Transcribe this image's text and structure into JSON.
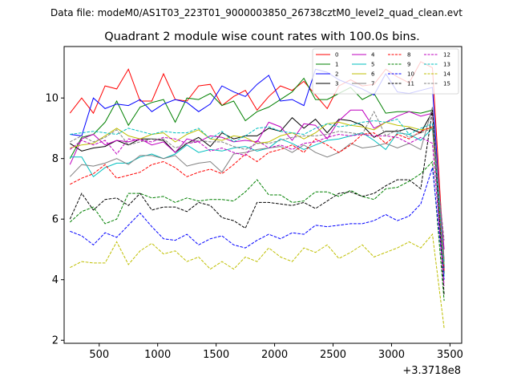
{
  "page": {
    "datafile": "Data file: modeM0/AS1T03_223T01_9000003850_26738cztM0_level2_quad_clean.evt"
  },
  "chart_data": {
    "type": "line",
    "title": "Quadrant 2 module wise count rates with 100.0s bins.",
    "xlabel": "",
    "ylabel": "",
    "x_offset_label": "+3.3718e8",
    "xlim": [
      200,
      3600
    ],
    "ylim": [
      1.9,
      11.7
    ],
    "xticks": [
      500,
      1000,
      1500,
      2000,
      2500,
      3000,
      3500
    ],
    "yticks": [
      2,
      4,
      6,
      8,
      10
    ],
    "legend_position": "top-right",
    "x": [
      250,
      350,
      450,
      550,
      650,
      750,
      850,
      950,
      1050,
      1150,
      1250,
      1350,
      1450,
      1550,
      1650,
      1750,
      1850,
      1950,
      2050,
      2150,
      2250,
      2350,
      2450,
      2550,
      2650,
      2750,
      2850,
      2950,
      3050,
      3150,
      3250,
      3350,
      3450
    ],
    "series": [
      {
        "name": "0",
        "color": "#ff0000",
        "dash": "solid",
        "values": [
          9.5,
          10.0,
          9.5,
          10.4,
          10.3,
          10.95,
          9.9,
          9.9,
          10.8,
          9.95,
          9.9,
          10.4,
          10.45,
          9.75,
          10.05,
          10.25,
          9.6,
          10.05,
          10.4,
          10.25,
          10.55,
          10.1,
          9.65,
          10.4,
          10.6,
          10.4,
          10.45,
          10.95,
          10.7,
          10.5,
          11.2,
          11.0,
          4.6
        ]
      },
      {
        "name": "1",
        "color": "#008000",
        "dash": "solid",
        "values": [
          8.0,
          8.7,
          8.8,
          9.2,
          9.9,
          9.1,
          9.7,
          9.85,
          9.95,
          9.2,
          10.0,
          9.95,
          10.15,
          9.75,
          9.9,
          9.25,
          9.55,
          9.7,
          9.95,
          10.2,
          10.65,
          9.95,
          9.95,
          10.15,
          10.35,
          9.95,
          10.15,
          9.5,
          9.55,
          9.55,
          9.5,
          9.6,
          4.4
        ]
      },
      {
        "name": "2",
        "color": "#0000ff",
        "dash": "solid",
        "values": [
          8.8,
          8.75,
          10.0,
          9.65,
          9.8,
          9.75,
          9.95,
          9.55,
          9.8,
          9.95,
          9.85,
          9.55,
          9.8,
          10.4,
          10.2,
          10.05,
          10.45,
          10.75,
          9.9,
          9.95,
          9.75,
          10.95,
          10.85,
          10.6,
          10.45,
          10.3,
          10.1,
          10.8,
          10.2,
          10.15,
          10.25,
          10.35,
          4.3
        ]
      },
      {
        "name": "3",
        "color": "#000000",
        "dash": "solid",
        "values": [
          8.5,
          8.25,
          8.35,
          8.4,
          8.6,
          8.45,
          8.65,
          8.65,
          8.6,
          8.2,
          8.5,
          8.7,
          8.4,
          8.85,
          8.65,
          8.75,
          8.75,
          9.0,
          8.9,
          9.35,
          9.0,
          9.3,
          8.85,
          9.3,
          9.25,
          9.1,
          8.7,
          8.9,
          8.9,
          9.0,
          8.85,
          9.55,
          4.2
        ]
      },
      {
        "name": "4",
        "color": "#bf00bf",
        "dash": "solid",
        "values": [
          7.8,
          8.65,
          8.8,
          8.45,
          8.6,
          8.55,
          8.65,
          8.45,
          8.55,
          8.2,
          8.65,
          8.55,
          8.75,
          8.7,
          8.55,
          8.6,
          8.55,
          9.2,
          9.05,
          8.6,
          9.15,
          9.1,
          8.65,
          9.25,
          9.6,
          9.6,
          9.0,
          9.2,
          9.4,
          9.55,
          9.4,
          9.5,
          5.0
        ]
      },
      {
        "name": "5",
        "color": "#00bfbf",
        "dash": "solid",
        "values": [
          8.05,
          8.05,
          7.4,
          7.7,
          7.85,
          7.85,
          8.05,
          8.15,
          8.0,
          8.15,
          8.45,
          8.2,
          8.3,
          8.25,
          8.35,
          8.4,
          8.25,
          8.35,
          8.65,
          8.5,
          8.3,
          8.45,
          8.6,
          8.65,
          8.75,
          8.85,
          8.6,
          8.3,
          8.85,
          8.8,
          8.6,
          9.0,
          4.1
        ]
      },
      {
        "name": "6",
        "color": "#bfbf00",
        "dash": "solid",
        "values": [
          8.35,
          8.45,
          8.5,
          8.75,
          9.0,
          8.75,
          8.65,
          8.8,
          8.85,
          8.55,
          8.8,
          8.95,
          8.65,
          8.6,
          8.75,
          8.7,
          8.5,
          8.55,
          8.75,
          8.85,
          8.65,
          8.85,
          9.15,
          9.2,
          9.1,
          9.05,
          8.95,
          9.2,
          9.1,
          9.05,
          8.95,
          9.0,
          4.5
        ]
      },
      {
        "name": "7",
        "color": "#808080",
        "dash": "solid",
        "values": [
          7.4,
          7.8,
          7.75,
          7.85,
          8.0,
          7.8,
          8.1,
          8.1,
          8.0,
          8.1,
          7.75,
          7.85,
          7.9,
          7.55,
          8.15,
          8.2,
          8.3,
          8.35,
          8.4,
          8.2,
          8.45,
          8.2,
          8.05,
          8.2,
          8.5,
          8.35,
          8.4,
          8.5,
          8.35,
          8.5,
          8.3,
          9.7,
          4.6
        ]
      },
      {
        "name": "8",
        "color": "#ff0000",
        "dash": "dashed",
        "values": [
          7.15,
          7.35,
          7.5,
          7.8,
          7.35,
          7.45,
          7.55,
          7.8,
          7.9,
          7.7,
          7.4,
          7.55,
          7.65,
          7.5,
          7.8,
          8.15,
          7.9,
          8.2,
          8.3,
          8.45,
          8.2,
          8.65,
          8.45,
          8.2,
          8.45,
          8.8,
          8.85,
          8.5,
          8.8,
          8.65,
          8.9,
          9.05,
          4.3
        ]
      },
      {
        "name": "9",
        "color": "#008000",
        "dash": "dashed",
        "values": [
          5.9,
          6.25,
          6.4,
          5.85,
          6.0,
          6.85,
          6.85,
          6.7,
          6.75,
          6.55,
          6.7,
          6.6,
          6.65,
          6.65,
          6.6,
          6.9,
          7.3,
          6.8,
          6.8,
          6.55,
          6.6,
          6.9,
          6.9,
          6.75,
          6.95,
          6.75,
          6.65,
          7.0,
          7.05,
          7.25,
          7.5,
          7.9,
          3.3
        ]
      },
      {
        "name": "10",
        "color": "#0000ff",
        "dash": "dashed",
        "values": [
          5.6,
          5.45,
          5.15,
          5.55,
          5.4,
          5.8,
          6.2,
          5.75,
          5.35,
          5.3,
          5.5,
          5.15,
          5.35,
          5.45,
          5.15,
          5.05,
          5.3,
          5.5,
          5.35,
          5.55,
          5.5,
          5.8,
          5.75,
          5.8,
          5.85,
          5.85,
          5.95,
          6.15,
          5.95,
          6.1,
          6.5,
          7.7,
          4.0
        ]
      },
      {
        "name": "11",
        "color": "#000000",
        "dash": "dashed",
        "values": [
          6.0,
          6.85,
          6.3,
          6.65,
          6.7,
          6.45,
          6.85,
          6.3,
          6.4,
          6.4,
          6.25,
          6.55,
          6.45,
          6.05,
          5.95,
          5.7,
          6.55,
          6.55,
          6.5,
          6.45,
          6.55,
          6.35,
          6.6,
          6.85,
          6.9,
          6.75,
          6.85,
          7.1,
          7.3,
          7.3,
          7.0,
          9.6,
          3.5
        ]
      },
      {
        "name": "12",
        "color": "#bf00bf",
        "dash": "dashed",
        "values": [
          8.3,
          8.6,
          8.45,
          8.6,
          8.15,
          8.65,
          8.6,
          8.55,
          8.7,
          8.65,
          8.5,
          8.55,
          8.25,
          8.35,
          8.2,
          8.1,
          8.6,
          8.35,
          8.45,
          8.3,
          8.5,
          8.55,
          8.7,
          8.8,
          8.75,
          8.8,
          8.75,
          8.75,
          8.7,
          8.5,
          8.7,
          8.5,
          3.8
        ]
      },
      {
        "name": "13",
        "color": "#00bfbf",
        "dash": "dashed",
        "values": [
          8.8,
          8.85,
          8.9,
          8.85,
          8.8,
          9.0,
          8.9,
          8.8,
          8.9,
          8.85,
          8.85,
          9.0,
          8.65,
          8.9,
          8.55,
          8.75,
          9.0,
          9.05,
          8.9,
          8.85,
          8.8,
          9.0,
          9.15,
          9.05,
          9.1,
          9.2,
          9.25,
          9.2,
          9.3,
          8.8,
          9.0,
          9.15,
          4.5
        ]
      },
      {
        "name": "14",
        "color": "#bfbf00",
        "dash": "dashed",
        "values": [
          4.4,
          4.6,
          4.55,
          4.55,
          5.25,
          4.5,
          4.95,
          5.2,
          4.85,
          4.95,
          4.6,
          4.75,
          4.35,
          4.6,
          4.35,
          4.75,
          4.6,
          5.05,
          4.75,
          4.6,
          5.05,
          4.9,
          5.15,
          4.7,
          4.9,
          5.15,
          4.75,
          4.9,
          5.05,
          5.25,
          5.05,
          5.5,
          2.4
        ]
      },
      {
        "name": "15",
        "color": "#808080",
        "dash": "dashed",
        "values": [
          8.55,
          8.75,
          8.55,
          8.7,
          8.95,
          8.45,
          8.55,
          8.65,
          8.65,
          8.35,
          8.5,
          8.6,
          8.55,
          8.55,
          8.4,
          8.3,
          8.5,
          8.5,
          8.6,
          8.7,
          8.75,
          8.75,
          8.8,
          8.9,
          8.85,
          8.8,
          9.55,
          8.75,
          8.95,
          8.7,
          8.85,
          9.0,
          5.3
        ]
      }
    ]
  }
}
